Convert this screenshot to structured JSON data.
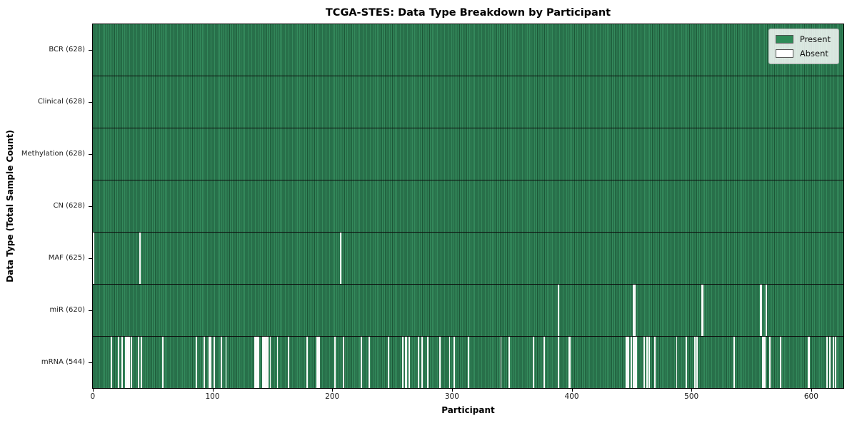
{
  "figure": {
    "title": "TCGA-STES: Data Type Breakdown by Participant",
    "background_color": "#ffffff"
  },
  "axes": {
    "xlabel": "Participant",
    "ylabel": "Data Type (Total Sample Count)"
  },
  "legend": {
    "items": [
      {
        "label": "Present",
        "color": "#2e8b57"
      },
      {
        "label": "Absent",
        "color": "#ffffff"
      }
    ]
  },
  "chart_data": {
    "type": "heatmap",
    "title": "TCGA-STES: Data Type Breakdown by Participant",
    "xlabel": "Participant",
    "ylabel": "Data Type (Total Sample Count)",
    "legend": [
      "Present",
      "Absent"
    ],
    "legend_position": "upper right",
    "present_color": "#2e8b57",
    "present_edge_color": "#1c5737",
    "absent_color": "#ffffff",
    "n_participants": 628,
    "xlim": [
      -0.5,
      627.5
    ],
    "x_ticks": [
      0,
      100,
      200,
      300,
      400,
      500,
      600
    ],
    "grid": false,
    "rows": [
      {
        "name": "BCR",
        "label": "BCR (628)",
        "present_count": 628,
        "absent_count": 0,
        "absent_indices": []
      },
      {
        "name": "Clinical",
        "label": "Clinical (628)",
        "present_count": 628,
        "absent_count": 0,
        "absent_indices": []
      },
      {
        "name": "Methylation",
        "label": "Methylation (628)",
        "present_count": 628,
        "absent_count": 0,
        "absent_indices": []
      },
      {
        "name": "CN",
        "label": "CN (628)",
        "present_count": 628,
        "absent_count": 0,
        "absent_indices": []
      },
      {
        "name": "MAF",
        "label": "MAF (625)",
        "present_count": 625,
        "absent_count": 3,
        "absent_indices": [
          0,
          39,
          207
        ]
      },
      {
        "name": "miR",
        "label": "miR (620)",
        "present_count": 620,
        "absent_count": 8,
        "absent_indices": [
          389,
          452,
          453,
          509,
          510,
          558,
          559,
          563
        ]
      },
      {
        "name": "mRNA",
        "label": "mRNA (544)",
        "present_count": 544,
        "absent_count": 84,
        "absent_indices": [
          15,
          21,
          24,
          27,
          28,
          29,
          30,
          32,
          38,
          40,
          58,
          86,
          93,
          97,
          98,
          101,
          107,
          111,
          135,
          136,
          137,
          138,
          142,
          143,
          144,
          145,
          146,
          148,
          154,
          163,
          179,
          187,
          188,
          189,
          202,
          209,
          224,
          231,
          247,
          259,
          261,
          262,
          264,
          272,
          275,
          280,
          290,
          298,
          302,
          314,
          341,
          348,
          368,
          377,
          389,
          398,
          399,
          446,
          447,
          448,
          450,
          452,
          453,
          454,
          461,
          463,
          465,
          470,
          488,
          496,
          503,
          505,
          536,
          560,
          561,
          562,
          566,
          575,
          598,
          599,
          614,
          616,
          619,
          621
        ]
      }
    ]
  }
}
